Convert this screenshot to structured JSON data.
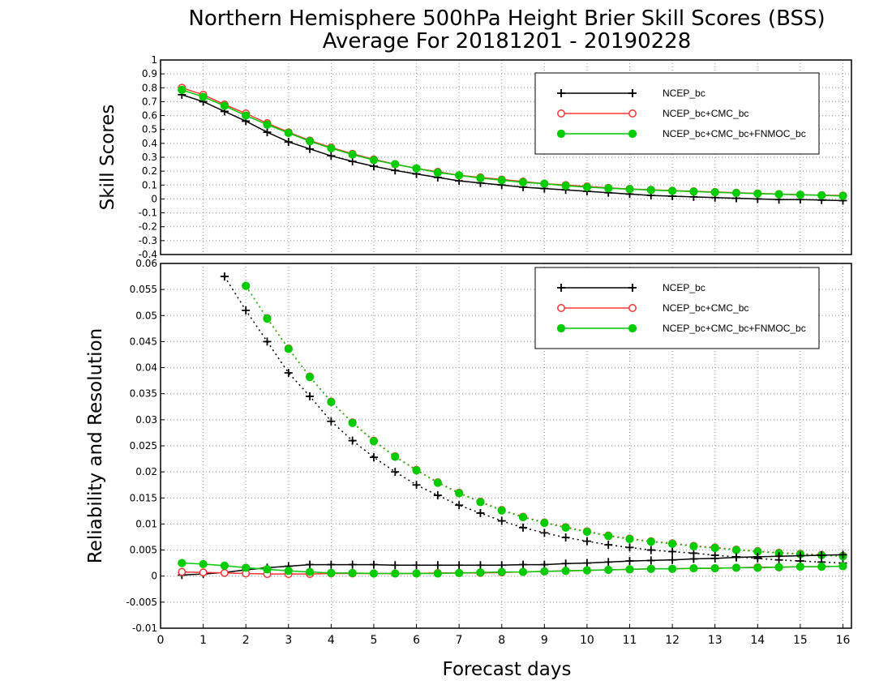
{
  "chart_data": {
    "type": "line",
    "title": [
      "Northern Hemisphere 500hPa Height Brier Skill Scores (BSS)",
      "Average For 20181201 - 20190228"
    ],
    "xlabel": "Forecast days",
    "x": [
      0.5,
      1,
      1.5,
      2,
      2.5,
      3,
      3.5,
      4,
      4.5,
      5,
      5.5,
      6,
      6.5,
      7,
      7.5,
      8,
      8.5,
      9,
      9.5,
      10,
      10.5,
      11,
      11.5,
      12,
      12.5,
      13,
      13.5,
      14,
      14.5,
      15,
      15.5,
      16
    ],
    "xlim": [
      0,
      16.2
    ],
    "xticks": [
      "0",
      "1",
      "2",
      "3",
      "4",
      "5",
      "6",
      "7",
      "8",
      "9",
      "10",
      "11",
      "12",
      "13",
      "14",
      "15",
      "16"
    ],
    "grid": true,
    "panels": [
      {
        "ylabel": "Skill Scores",
        "ylim": [
          -0.4,
          1
        ],
        "yticks": [
          "-0.4",
          "-0.3",
          "-0.2",
          "-0.1",
          "0",
          "0.1",
          "0.2",
          "0.3",
          "0.4",
          "0.5",
          "0.6",
          "0.7",
          "0.8",
          "0.9",
          "1"
        ],
        "legend_position": "top-right",
        "series": [
          {
            "name": "NCEP_bc",
            "color": "#000000",
            "marker": "plus",
            "style": "solid",
            "values": [
              0.75,
              0.7,
              0.63,
              0.56,
              0.48,
              0.41,
              0.36,
              0.31,
              0.27,
              0.235,
              0.205,
              0.18,
              0.155,
              0.13,
              0.115,
              0.1,
              0.085,
              0.075,
              0.065,
              0.055,
              0.045,
              0.035,
              0.025,
              0.02,
              0.015,
              0.01,
              0.005,
              0.0,
              -0.005,
              -0.005,
              -0.008,
              -0.012
            ]
          },
          {
            "name": "NCEP_bc+CMC_bc",
            "color": "#ff3333",
            "marker": "open-circle",
            "style": "solid",
            "values": [
              0.8,
              0.75,
              0.68,
              0.615,
              0.545,
              0.48,
              0.42,
              0.37,
              0.325,
              0.285,
              0.25,
              0.22,
              0.195,
              0.17,
              0.155,
              0.14,
              0.125,
              0.11,
              0.1,
              0.09,
              0.08,
              0.072,
              0.066,
              0.06,
              0.055,
              0.05,
              0.045,
              0.04,
              0.035,
              0.03,
              0.027,
              0.025
            ]
          },
          {
            "name": "NCEP_bc+CMC_bc+FNMOC_bc",
            "color": "#00cc00",
            "marker": "filled-circle",
            "style": "solid",
            "values": [
              0.785,
              0.735,
              0.67,
              0.6,
              0.535,
              0.475,
              0.415,
              0.365,
              0.32,
              0.28,
              0.25,
              0.22,
              0.19,
              0.17,
              0.15,
              0.135,
              0.12,
              0.11,
              0.095,
              0.085,
              0.077,
              0.07,
              0.064,
              0.058,
              0.053,
              0.048,
              0.043,
              0.038,
              0.034,
              0.03,
              0.026,
              0.022
            ]
          }
        ]
      },
      {
        "ylabel": "Reliability and Resolution",
        "ylim": [
          -0.01,
          0.06
        ],
        "yticks": [
          "-0.01",
          "-0.005",
          "0",
          "0.005",
          "0.01",
          "0.015",
          "0.02",
          "0.025",
          "0.03",
          "0.035",
          "0.04",
          "0.045",
          "0.05",
          "0.055",
          "0.06"
        ],
        "legend_position": "top-right",
        "legend": [
          {
            "name": "NCEP_bc",
            "color": "#000000",
            "marker": "plus"
          },
          {
            "name": "NCEP_bc+CMC_bc",
            "color": "#ff3333",
            "marker": "open-circle"
          },
          {
            "name": "NCEP_bc+CMC_bc+FNMOC_bc",
            "color": "#00cc00",
            "marker": "filled-circle"
          }
        ],
        "series": [
          {
            "color": "#000000",
            "marker": "plus",
            "style": "dotted",
            "values": [
              null,
              null,
              0.0575,
              0.051,
              0.045,
              0.039,
              0.0345,
              0.0297,
              0.026,
              0.0228,
              0.02,
              0.0175,
              0.0155,
              0.0136,
              0.0121,
              0.0106,
              0.0093,
              0.0083,
              0.0074,
              0.0067,
              0.006,
              0.0055,
              0.005,
              0.0047,
              0.0044,
              0.004,
              0.0037,
              0.0034,
              0.0031,
              0.0029,
              0.0027,
              0.0025
            ]
          },
          {
            "color": "#ff3333",
            "marker": "open-circle",
            "style": "dotted",
            "values": [
              null,
              null,
              null,
              0.0557,
              0.0495,
              0.0437,
              0.0383,
              0.0335,
              0.0295,
              0.026,
              0.023,
              0.0204,
              0.018,
              0.016,
              0.0143,
              0.0127,
              0.0114,
              0.0103,
              0.0094,
              0.0086,
              0.0078,
              0.0072,
              0.0067,
              0.0063,
              0.0058,
              0.0055,
              0.0051,
              0.0048,
              0.0045,
              0.0043,
              0.0041,
              0.0039
            ]
          },
          {
            "color": "#00cc00",
            "marker": "filled-circle",
            "style": "dotted",
            "values": [
              null,
              null,
              null,
              0.0557,
              0.0494,
              0.0436,
              0.0382,
              0.0334,
              0.0294,
              0.0259,
              0.0229,
              0.0203,
              0.0179,
              0.0159,
              0.0142,
              0.0126,
              0.0113,
              0.0102,
              0.0093,
              0.0085,
              0.0077,
              0.0071,
              0.0066,
              0.0062,
              0.0057,
              0.0054,
              0.005,
              0.0047,
              0.0044,
              0.0042,
              0.004,
              0.0038
            ]
          },
          {
            "color": "#000000",
            "marker": "plus",
            "style": "solid",
            "values": [
              0.0002,
              0.0004,
              0.0007,
              0.0012,
              0.0016,
              0.0019,
              0.0022,
              0.0022,
              0.0022,
              0.0022,
              0.0021,
              0.0021,
              0.0021,
              0.0021,
              0.0021,
              0.0021,
              0.0022,
              0.0022,
              0.0024,
              0.0025,
              0.0027,
              0.0029,
              0.003,
              0.0031,
              0.0033,
              0.0034,
              0.0036,
              0.0037,
              0.0038,
              0.0039,
              0.004,
              0.0041
            ]
          },
          {
            "color": "#ff3333",
            "marker": "open-circle",
            "style": "solid",
            "values": [
              0.0008,
              0.0007,
              0.0006,
              0.0005,
              0.0004,
              0.0004,
              0.0004,
              0.0005,
              0.0005,
              0.0005,
              0.0005,
              0.0005,
              0.0006,
              0.0006,
              0.0006,
              0.0007,
              0.0008,
              0.0009,
              0.001,
              0.0011,
              0.0012,
              0.0013,
              0.0014,
              0.0014,
              0.0015,
              0.0015,
              0.0016,
              0.0017,
              0.0017,
              0.0018,
              0.0018,
              0.0019
            ]
          },
          {
            "color": "#00cc00",
            "marker": "filled-circle",
            "style": "solid",
            "values": [
              0.0025,
              0.0023,
              0.002,
              0.0016,
              0.0013,
              0.001,
              0.0008,
              0.0006,
              0.0006,
              0.0005,
              0.0005,
              0.0005,
              0.0005,
              0.0006,
              0.0007,
              0.0008,
              0.0008,
              0.0009,
              0.001,
              0.0011,
              0.0012,
              0.0013,
              0.0014,
              0.0014,
              0.0015,
              0.0015,
              0.0016,
              0.0016,
              0.0017,
              0.0018,
              0.0018,
              0.0019
            ]
          }
        ]
      }
    ]
  }
}
